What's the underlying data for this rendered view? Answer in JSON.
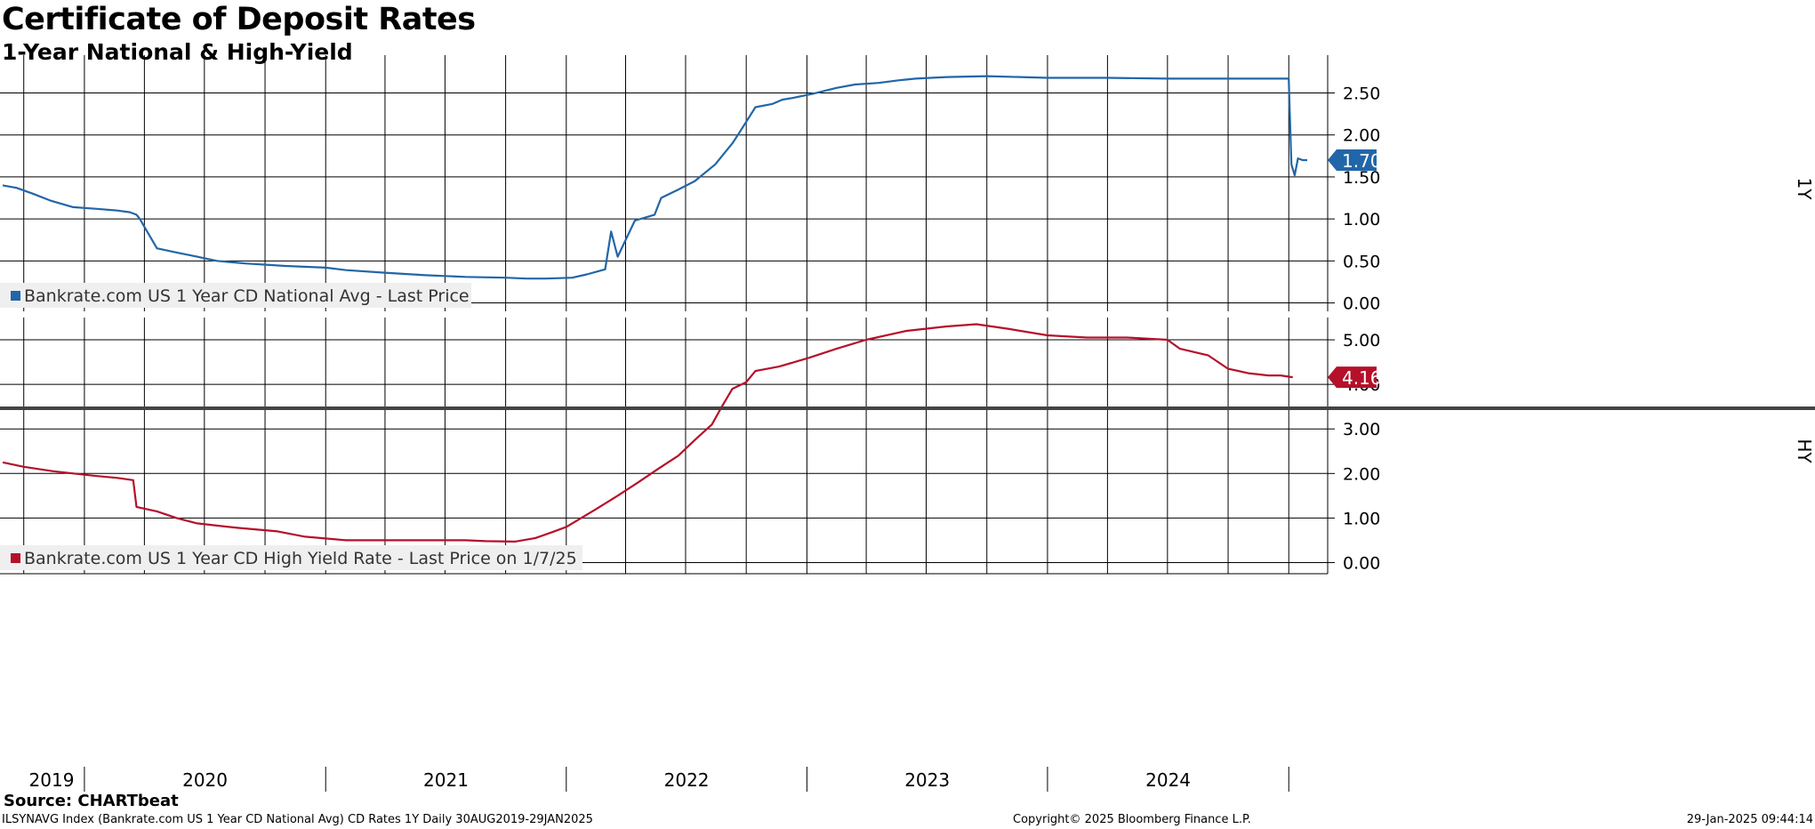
{
  "title": "Certificate of Deposit Rates",
  "subtitle": "1-Year National & High-Yield",
  "source": "Source: CHARTbeat",
  "footer": {
    "left": "ILSYNAVG Index (Bankrate.com US 1 Year CD National Avg) CD Rates 1Y  Daily 30AUG2019-29JAN2025",
    "center": "Copyright© 2025 Bloomberg Finance L.P.",
    "right": "29-Jan-2025 09:44:14"
  },
  "colors": {
    "national": "#2166a8",
    "high_yield": "#b5102a",
    "grid": "#000000"
  },
  "chart_data": [
    {
      "type": "line",
      "panel": "top",
      "axis_label": "1Y",
      "ylim": [
        -0.1,
        2.95
      ],
      "yticks": [
        "0.00",
        "0.50",
        "1.00",
        "1.50",
        "2.00",
        "2.50"
      ],
      "legend": "Bankrate.com US 1 Year CD National Avg - Last Price",
      "legend_placement": "bottom-left",
      "last_value_label": "1.70",
      "series": [
        {
          "name": "Bankrate.com US 1 Year CD National Avg - Last Price",
          "x": [
            "2019-08-30",
            "2019-09-20",
            "2019-10-15",
            "2019-11-10",
            "2019-12-15",
            "2020-01-20",
            "2020-02-20",
            "2020-03-10",
            "2020-03-20",
            "2020-03-25",
            "2020-04-20",
            "2020-05-20",
            "2020-06-20",
            "2020-07-20",
            "2020-09-01",
            "2020-11-01",
            "2021-01-01",
            "2021-02-01",
            "2021-04-01",
            "2021-06-01",
            "2021-08-01",
            "2021-10-01",
            "2021-11-01",
            "2021-12-01",
            "2022-01-10",
            "2022-02-01",
            "2022-03-01",
            "2022-03-10",
            "2022-03-20",
            "2022-04-15",
            "2022-05-15",
            "2022-05-25",
            "2022-06-20",
            "2022-07-15",
            "2022-08-15",
            "2022-09-10",
            "2022-09-20",
            "2022-10-15",
            "2022-11-10",
            "2022-11-25",
            "2022-12-10",
            "2023-01-10",
            "2023-02-15",
            "2023-03-15",
            "2023-04-20",
            "2023-05-20",
            "2023-06-15",
            "2023-08-01",
            "2023-10-01",
            "2024-01-01",
            "2024-04-01",
            "2024-07-01",
            "2024-09-01",
            "2024-11-01",
            "2024-12-15",
            "2025-01-01",
            "2025-01-05",
            "2025-01-10",
            "2025-01-15",
            "2025-01-22",
            "2025-01-29"
          ],
          "values": [
            1.4,
            1.37,
            1.3,
            1.22,
            1.14,
            1.12,
            1.1,
            1.08,
            1.05,
            1.0,
            0.65,
            0.6,
            0.55,
            0.5,
            0.47,
            0.44,
            0.42,
            0.39,
            0.36,
            0.33,
            0.31,
            0.3,
            0.29,
            0.29,
            0.3,
            0.34,
            0.4,
            0.85,
            0.55,
            0.98,
            1.05,
            1.25,
            1.35,
            1.45,
            1.65,
            1.9,
            2.02,
            2.33,
            2.37,
            2.42,
            2.44,
            2.49,
            2.56,
            2.6,
            2.62,
            2.65,
            2.67,
            2.69,
            2.7,
            2.68,
            2.68,
            2.67,
            2.67,
            2.67,
            2.67,
            2.67,
            1.65,
            1.52,
            1.72,
            1.7,
            1.7
          ]
        }
      ]
    },
    {
      "type": "line",
      "panel": "bottom",
      "axis_label": "HY",
      "ylim": [
        -0.25,
        5.5
      ],
      "yticks": [
        "0.00",
        "1.00",
        "2.00",
        "3.00",
        "4.00",
        "5.00"
      ],
      "legend": "Bankrate.com US 1 Year CD High Yield Rate - Last Price on 1/7/25",
      "legend_placement": "bottom-left",
      "last_value_label": "4.16",
      "series": [
        {
          "name": "Bankrate.com US 1 Year CD High Yield Rate - Last Price on 1/7/25",
          "x": [
            "2019-08-30",
            "2019-10-01",
            "2019-11-15",
            "2020-01-15",
            "2020-02-20",
            "2020-03-15",
            "2020-03-20",
            "2020-04-20",
            "2020-05-20",
            "2020-06-20",
            "2020-08-20",
            "2020-10-20",
            "2020-12-01",
            "2021-02-01",
            "2021-04-01",
            "2021-06-01",
            "2021-08-01",
            "2021-09-01",
            "2021-10-15",
            "2021-11-15",
            "2021-12-10",
            "2022-01-01",
            "2022-02-15",
            "2022-03-20",
            "2022-04-20",
            "2022-05-20",
            "2022-06-20",
            "2022-07-15",
            "2022-08-10",
            "2022-08-25",
            "2022-09-10",
            "2022-10-01",
            "2022-10-15",
            "2022-11-20",
            "2023-01-05",
            "2023-02-15",
            "2023-04-01",
            "2023-06-01",
            "2023-08-01",
            "2023-09-15",
            "2023-11-01",
            "2024-01-01",
            "2024-03-01",
            "2024-05-01",
            "2024-07-01",
            "2024-07-20",
            "2024-09-01",
            "2024-10-01",
            "2024-11-01",
            "2024-12-01",
            "2024-12-20",
            "2025-01-07"
          ],
          "values": [
            2.25,
            2.15,
            2.05,
            1.95,
            1.9,
            1.85,
            1.25,
            1.15,
            1.0,
            0.88,
            0.78,
            0.7,
            0.58,
            0.5,
            0.5,
            0.5,
            0.5,
            0.48,
            0.47,
            0.55,
            0.68,
            0.8,
            1.2,
            1.5,
            1.8,
            2.1,
            2.4,
            2.75,
            3.1,
            3.5,
            3.9,
            4.05,
            4.3,
            4.4,
            4.6,
            4.8,
            5.0,
            5.2,
            5.3,
            5.35,
            5.25,
            5.1,
            5.05,
            5.05,
            5.0,
            4.8,
            4.65,
            4.35,
            4.25,
            4.2,
            4.2,
            4.16
          ]
        }
      ]
    }
  ],
  "x_axis": {
    "years": [
      "2019",
      "2020",
      "2021",
      "2022",
      "2023",
      "2024"
    ]
  }
}
